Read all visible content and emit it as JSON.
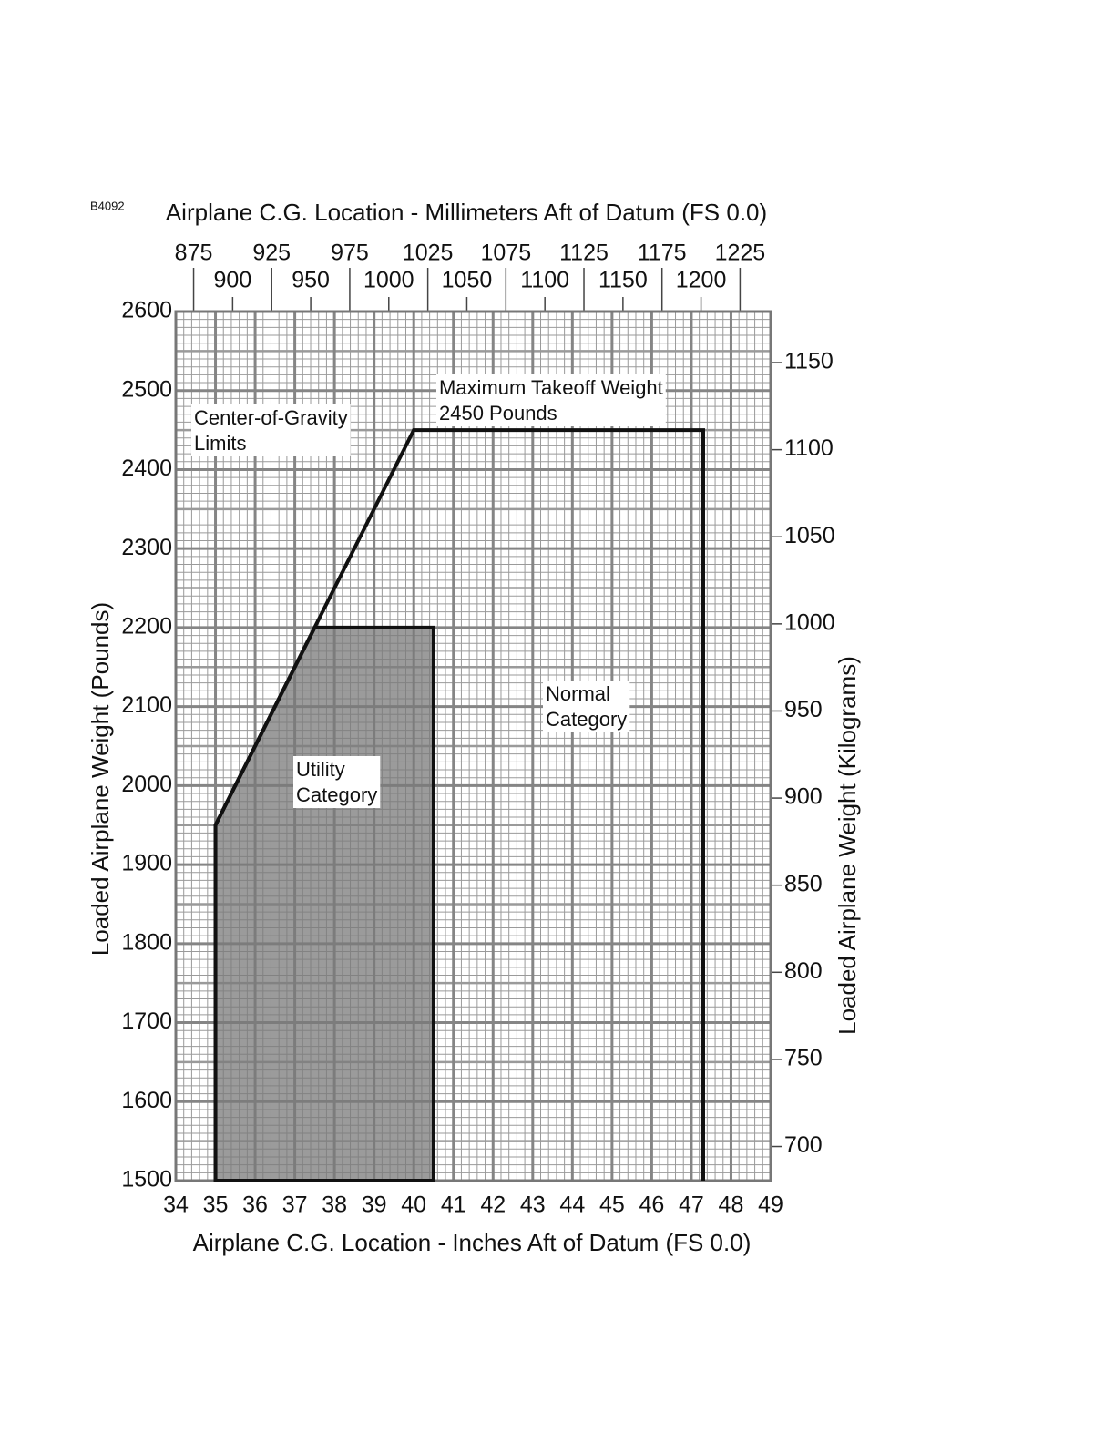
{
  "chart_data": {
    "type": "polygon",
    "code": "B4092",
    "title": "Airplane C.G. Location - Millimeters Aft of Datum (FS 0.0)",
    "x_label": "Airplane C.G. Location - Inches Aft of Datum (FS 0.0)",
    "y_label": "Loaded Airplane Weight (Pounds)",
    "y2_label": "Loaded Airplane Weight (Kilograms)",
    "xlim": [
      34,
      49
    ],
    "xticks": [
      34,
      35,
      36,
      37,
      38,
      39,
      40,
      41,
      42,
      43,
      44,
      45,
      46,
      47,
      48,
      49
    ],
    "ylim": [
      1500,
      2600
    ],
    "yticks": [
      1500,
      1600,
      1700,
      1800,
      1900,
      2000,
      2100,
      2200,
      2300,
      2400,
      2500,
      2600
    ],
    "x2lim": [
      863.6,
      1244.6
    ],
    "x2ticks": [
      875,
      900,
      925,
      950,
      975,
      1000,
      1025,
      1050,
      1075,
      1100,
      1125,
      1150,
      1175,
      1200,
      1225
    ],
    "y2lim": [
      680.4,
      1179.3
    ],
    "y2ticks": [
      700,
      750,
      800,
      850,
      900,
      950,
      1000,
      1050,
      1100,
      1150
    ],
    "grid": true,
    "series": [
      {
        "color": "#111111",
        "fill": "none",
        "x": [
          35,
          35,
          40,
          47.3,
          47.3
        ],
        "y": [
          1500,
          1950,
          2450,
          2450,
          1500
        ]
      },
      {
        "color": "#111111",
        "fill": "#7a7a7a",
        "x": [
          35,
          35,
          37.5,
          40.5,
          40.5
        ],
        "y": [
          1500,
          1950,
          2200,
          2200,
          1500
        ]
      }
    ],
    "annotations": [
      {
        "lines": [
          "Center-of-Gravity",
          "Limits"
        ]
      },
      {
        "lines": [
          "Maximum Takeoff Weight",
          "2450 Pounds"
        ]
      },
      {
        "lines": [
          "Normal",
          "Category"
        ]
      },
      {
        "lines": [
          "Utility",
          "Category"
        ]
      }
    ]
  }
}
